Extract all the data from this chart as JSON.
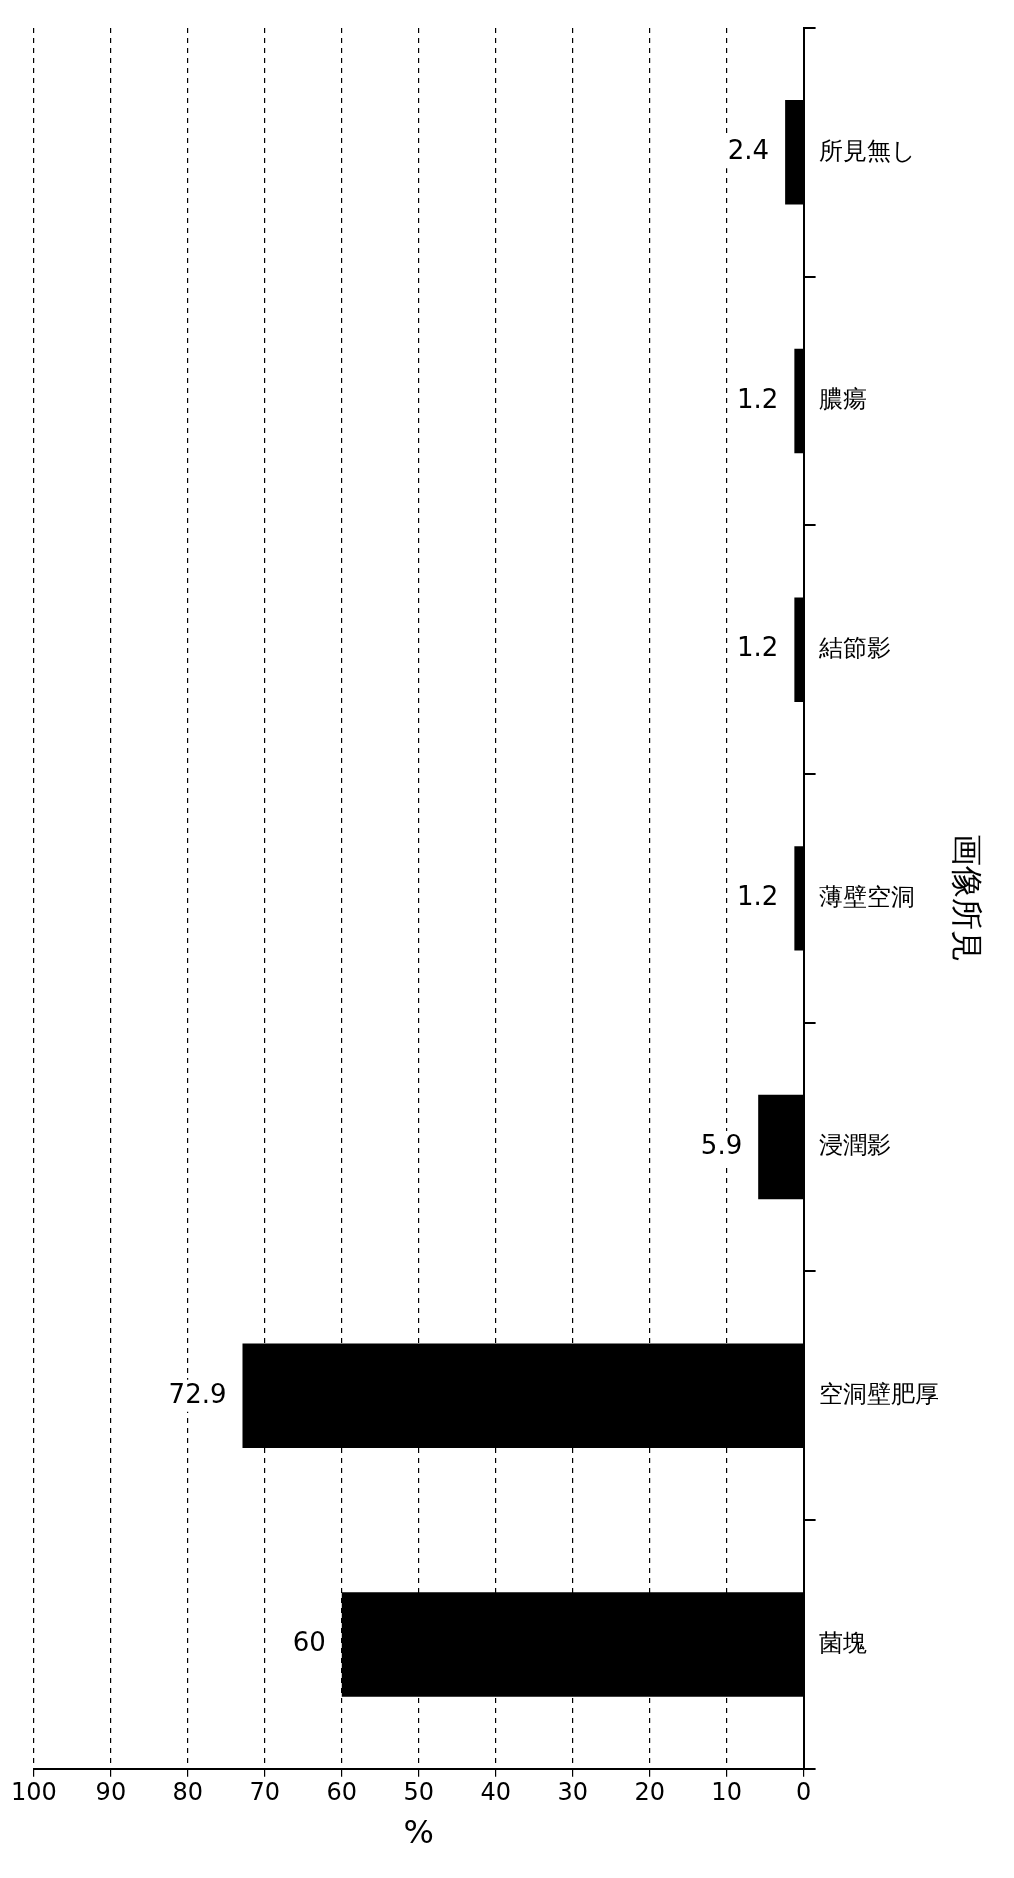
{
  "chart_data": {
    "type": "bar",
    "orientation": "horizontal",
    "xlabel": "%",
    "ylabel": "画像所見",
    "categories": [
      "所見無し",
      "膿瘍",
      "結節影",
      "薄壁空洞",
      "浸潤影",
      "空洞壁肥厚",
      "菌塊"
    ],
    "values": [
      2.4,
      1.2,
      1.2,
      1.2,
      5.9,
      72.9,
      60
    ],
    "color": "#000000",
    "xlim": [
      100,
      0
    ],
    "xticks": [
      100,
      90,
      80,
      70,
      60,
      50,
      40,
      30,
      20,
      10,
      0
    ],
    "grid": "x",
    "data_labels": true
  }
}
